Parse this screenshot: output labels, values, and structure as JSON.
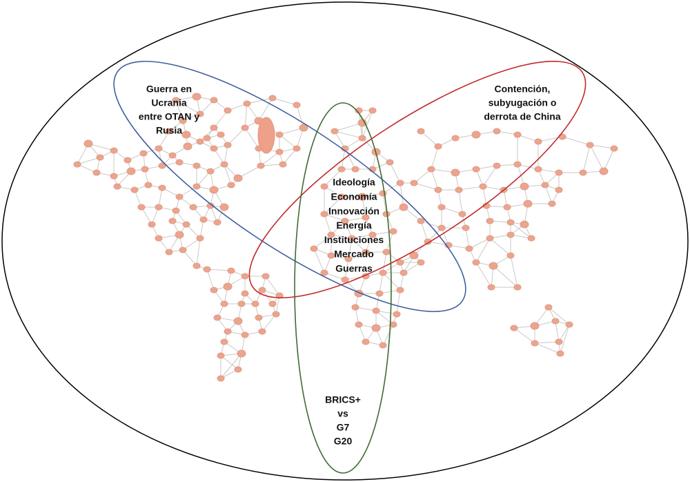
{
  "labels": {
    "ukraine": [
      "Guerra en",
      "Ucrania",
      "entre OTAN y",
      "Rusia"
    ],
    "china": [
      "Contención,",
      "subyugación o",
      "derrota de China"
    ],
    "center": [
      "Ideología",
      "Economía",
      "Innovación",
      "Energía",
      "Instituciones",
      "Mercado",
      "Guerras"
    ],
    "blocs": [
      "BRICS+",
      "vs",
      "G7",
      "G20"
    ]
  }
}
